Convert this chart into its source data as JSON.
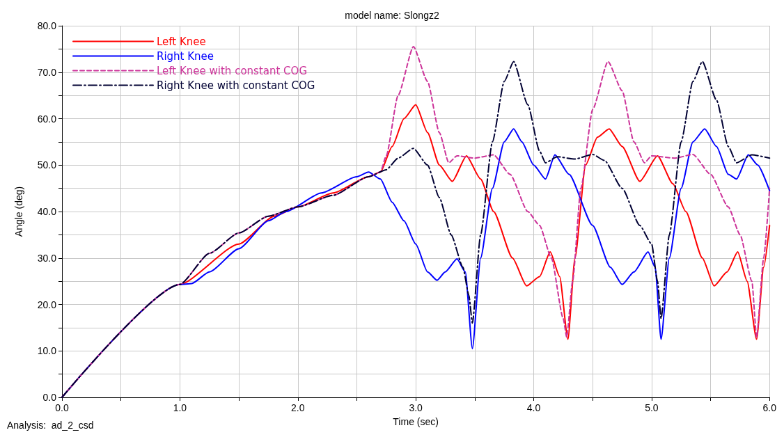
{
  "chart_data": {
    "type": "line",
    "title": "model name: Slongz2",
    "xlabel": "Time (sec)",
    "ylabel": "Angle (deg)",
    "annotations": [
      "Analysis:  ad_2_csd"
    ],
    "xlim": [
      0,
      6
    ],
    "ylim": [
      0,
      80
    ],
    "xticks": [
      {
        "value": 0,
        "label": "0.0"
      },
      {
        "value": 0.5,
        "label": null
      },
      {
        "value": 1,
        "label": "1.0"
      },
      {
        "value": 1.5,
        "label": null
      },
      {
        "value": 2,
        "label": "2.0"
      },
      {
        "value": 2.5,
        "label": null
      },
      {
        "value": 3,
        "label": "3.0"
      },
      {
        "value": 3.5,
        "label": null
      },
      {
        "value": 4,
        "label": "4.0"
      },
      {
        "value": 4.5,
        "label": null
      },
      {
        "value": 5,
        "label": "5.0"
      },
      {
        "value": 5.5,
        "label": null
      },
      {
        "value": 6,
        "label": "6.0"
      }
    ],
    "yticks": [
      {
        "value": 0,
        "label": "0.0"
      },
      {
        "value": 5,
        "label": null
      },
      {
        "value": 10,
        "label": "10.0"
      },
      {
        "value": 15,
        "label": null
      },
      {
        "value": 20,
        "label": "20.0"
      },
      {
        "value": 25,
        "label": null
      },
      {
        "value": 30,
        "label": "30.0"
      },
      {
        "value": 35,
        "label": null
      },
      {
        "value": 40,
        "label": "40.0"
      },
      {
        "value": 45,
        "label": null
      },
      {
        "value": 50,
        "label": "50.0"
      },
      {
        "value": 55,
        "label": null
      },
      {
        "value": 60,
        "label": "60.0"
      },
      {
        "value": 65,
        "label": null
      },
      {
        "value": 70,
        "label": "70.0"
      },
      {
        "value": 75,
        "label": null
      },
      {
        "value": 80,
        "label": "80.0"
      }
    ],
    "grid": true,
    "legend": "top left",
    "marker": "none",
    "series": [
      {
        "name": "Left Knee",
        "color": "#ff0000",
        "line_style": "solid",
        "x": [
          0,
          1.0,
          1.5,
          1.8,
          2.0,
          2.3,
          2.6,
          2.7,
          2.8,
          2.9,
          3.0,
          3.1,
          3.2,
          3.31,
          3.43,
          3.55,
          3.66,
          3.82,
          3.94,
          4.05,
          4.14,
          4.22,
          4.29,
          4.35,
          4.44,
          4.54,
          4.64,
          4.75,
          4.9,
          5.05,
          5.18,
          5.29,
          5.43,
          5.53,
          5.64,
          5.73,
          5.81,
          5.89,
          5.95,
          6.0
        ],
        "values": [
          0,
          24.3,
          33,
          39,
          41,
          44,
          47.5,
          48.5,
          54,
          60,
          63,
          57,
          50,
          46.5,
          52,
          47,
          40,
          30,
          24,
          26,
          31.3,
          26,
          12.5,
          30,
          50,
          56,
          57.8,
          54,
          46.5,
          52,
          46,
          40,
          30,
          24,
          27,
          31.3,
          25,
          12.5,
          28,
          37
        ]
      },
      {
        "name": "Right Knee",
        "color": "#0000ff",
        "line_style": "solid",
        "x": [
          0,
          1.0,
          1.1,
          1.25,
          1.5,
          1.75,
          1.9,
          2.2,
          2.5,
          2.6,
          2.7,
          2.8,
          2.9,
          3.0,
          3.1,
          3.18,
          3.25,
          3.35,
          3.42,
          3.48,
          3.55,
          3.65,
          3.75,
          3.83,
          3.9,
          4.0,
          4.1,
          4.18,
          4.3,
          4.5,
          4.65,
          4.75,
          4.85,
          4.97,
          5.03,
          5.08,
          5.15,
          5.25,
          5.35,
          5.45,
          5.55,
          5.65,
          5.72,
          5.82,
          5.9,
          6.0
        ],
        "values": [
          0,
          24.3,
          24.5,
          27,
          32,
          38,
          40,
          44,
          47.5,
          48.5,
          47,
          42,
          38,
          33,
          27,
          25.2,
          27,
          29.8,
          27,
          10.5,
          30,
          45,
          55,
          57.8,
          55,
          50,
          47,
          52.2,
          48,
          37,
          28,
          24.3,
          27,
          31.3,
          28,
          12.5,
          30,
          45,
          55,
          57.8,
          54,
          48,
          47,
          52.2,
          50,
          44.5
        ]
      },
      {
        "name": "Left Knee with constant COG",
        "color": "#cc3399",
        "line_style": "dashed",
        "x": [
          0,
          1.0,
          1.25,
          1.5,
          1.75,
          2.0,
          2.3,
          2.6,
          2.7,
          2.75,
          2.85,
          2.98,
          3.1,
          3.2,
          3.28,
          3.35,
          3.5,
          3.66,
          3.8,
          3.95,
          4.05,
          4.15,
          4.25,
          4.28,
          4.33,
          4.4,
          4.5,
          4.63,
          4.75,
          4.85,
          4.94,
          5.0,
          5.2,
          5.35,
          5.5,
          5.65,
          5.75,
          5.85,
          5.89,
          5.95,
          6.0
        ],
        "values": [
          0,
          24.3,
          31,
          35.4,
          39,
          41,
          43.5,
          47.5,
          48.5,
          52,
          65,
          75.5,
          68,
          57,
          50.5,
          52,
          51.5,
          52.2,
          48,
          40,
          37,
          30,
          17,
          13,
          25,
          45,
          62,
          72.3,
          66,
          55,
          50.5,
          52,
          51.5,
          52.3,
          48,
          41,
          35,
          25,
          13,
          30,
          45
        ]
      },
      {
        "name": "Right Knee with constant COG",
        "color": "#000033",
        "line_style": "dashdot",
        "x": [
          0,
          1.0,
          1.25,
          1.5,
          1.75,
          2.0,
          2.3,
          2.6,
          2.75,
          2.85,
          2.98,
          3.1,
          3.2,
          3.3,
          3.4,
          3.45,
          3.48,
          3.55,
          3.65,
          3.75,
          3.83,
          3.95,
          4.05,
          4.1,
          4.2,
          4.35,
          4.5,
          4.6,
          4.75,
          4.9,
          5.0,
          5.05,
          5.08,
          5.15,
          5.25,
          5.35,
          5.43,
          5.55,
          5.65,
          5.72,
          5.85,
          6.0
        ],
        "values": [
          0,
          24.3,
          31,
          35.4,
          39,
          41,
          43.5,
          47.5,
          49,
          51.5,
          53.6,
          50,
          43,
          35,
          28,
          22,
          16,
          35,
          55,
          68,
          72.3,
          63,
          53,
          50.5,
          51.8,
          51.3,
          52.3,
          51,
          45,
          37,
          33,
          25,
          17,
          35,
          55,
          68,
          72.3,
          64,
          54,
          50.5,
          52.2,
          51.5
        ]
      }
    ]
  }
}
